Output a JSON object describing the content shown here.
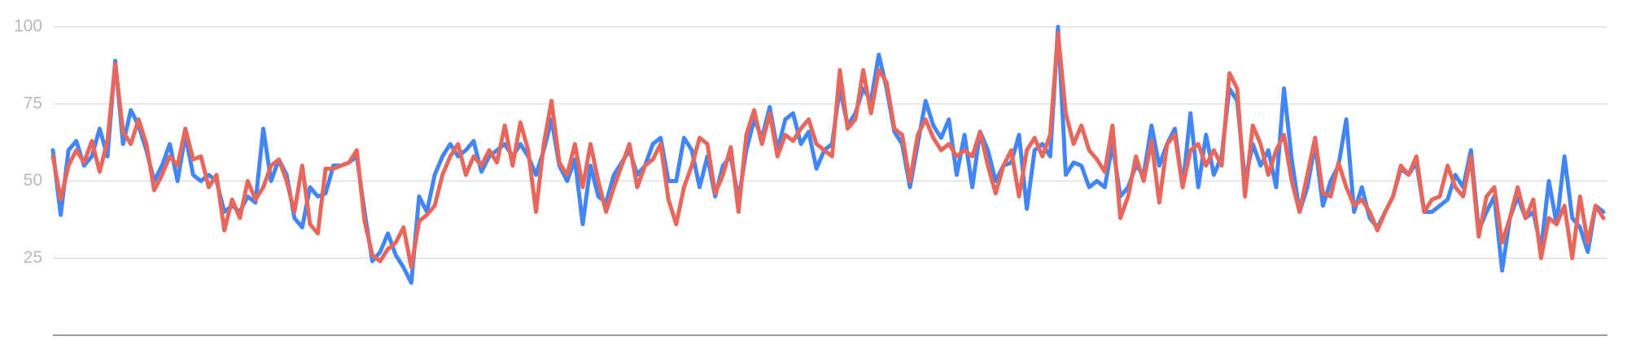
{
  "chart_data": {
    "type": "line",
    "series": [
      {
        "color": "#4285f4",
        "values": [
          60,
          39,
          60,
          63,
          55,
          58,
          67,
          58,
          89,
          62,
          73,
          68,
          60,
          50,
          55,
          62,
          50,
          65,
          52,
          50,
          52,
          50,
          40,
          42,
          40,
          45,
          43,
          67,
          50,
          57,
          52,
          38,
          35,
          48,
          45,
          46,
          55,
          55,
          56,
          58,
          40,
          24,
          27,
          33,
          26,
          22,
          17,
          45,
          40,
          52,
          58,
          62,
          58,
          60,
          63,
          53,
          58,
          60,
          62,
          58,
          62,
          58,
          52,
          60,
          70,
          55,
          50,
          57,
          36,
          55,
          45,
          43,
          52,
          56,
          60,
          52,
          55,
          62,
          64,
          50,
          50,
          64,
          60,
          48,
          58,
          45,
          55,
          58,
          44,
          60,
          70,
          64,
          74,
          60,
          70,
          72,
          62,
          66,
          54,
          60,
          62,
          80,
          68,
          72,
          80,
          76,
          91,
          80,
          66,
          62,
          48,
          62,
          76,
          68,
          64,
          70,
          52,
          65,
          48,
          66,
          60,
          50,
          55,
          56,
          65,
          41,
          60,
          62,
          58,
          100,
          52,
          56,
          55,
          48,
          50,
          48,
          62,
          45,
          48,
          55,
          52,
          68,
          55,
          62,
          67,
          48,
          72,
          48,
          65,
          52,
          58,
          80,
          76,
          50,
          62,
          55,
          60,
          48,
          80,
          57,
          40,
          48,
          62,
          42,
          50,
          55,
          70,
          40,
          48,
          38,
          35,
          40,
          45,
          54,
          52,
          56,
          40,
          40,
          42,
          44,
          52,
          48,
          60,
          34,
          40,
          45,
          21,
          38,
          45,
          38,
          40,
          28,
          50,
          36,
          58,
          38,
          35,
          27,
          42,
          40
        ]
      },
      {
        "color": "#e8675d",
        "values": [
          58,
          44,
          55,
          60,
          56,
          63,
          53,
          63,
          88,
          66,
          62,
          70,
          62,
          47,
          52,
          58,
          55,
          67,
          57,
          58,
          48,
          52,
          34,
          44,
          38,
          50,
          44,
          48,
          55,
          57,
          50,
          40,
          55,
          36,
          33,
          54,
          54,
          55,
          56,
          60,
          37,
          26,
          24,
          28,
          30,
          35,
          22,
          37,
          39,
          42,
          52,
          58,
          62,
          52,
          58,
          55,
          60,
          56,
          68,
          55,
          69,
          60,
          40,
          62,
          76,
          56,
          52,
          62,
          48,
          62,
          50,
          40,
          48,
          55,
          62,
          48,
          55,
          57,
          62,
          44,
          36,
          48,
          55,
          64,
          62,
          46,
          52,
          61,
          40,
          65,
          73,
          62,
          72,
          58,
          65,
          63,
          67,
          70,
          62,
          60,
          58,
          86,
          67,
          70,
          86,
          72,
          86,
          82,
          67,
          65,
          50,
          65,
          70,
          64,
          60,
          62,
          58,
          60,
          58,
          66,
          55,
          46,
          55,
          60,
          45,
          60,
          64,
          58,
          65,
          98,
          72,
          62,
          68,
          60,
          57,
          53,
          68,
          38,
          45,
          58,
          50,
          63,
          43,
          62,
          65,
          48,
          60,
          62,
          55,
          60,
          55,
          85,
          80,
          45,
          68,
          62,
          52,
          60,
          65,
          50,
          40,
          52,
          64,
          46,
          45,
          56,
          48,
          42,
          44,
          40,
          34,
          40,
          45,
          55,
          52,
          58,
          40,
          44,
          45,
          55,
          48,
          45,
          58,
          32,
          45,
          48,
          30,
          38,
          48,
          38,
          44,
          25,
          38,
          36,
          42,
          25,
          45,
          30,
          42,
          38
        ]
      }
    ],
    "ylim": [
      0,
      100
    ],
    "yticks": [
      25,
      50,
      75,
      100
    ],
    "grid": true
  }
}
